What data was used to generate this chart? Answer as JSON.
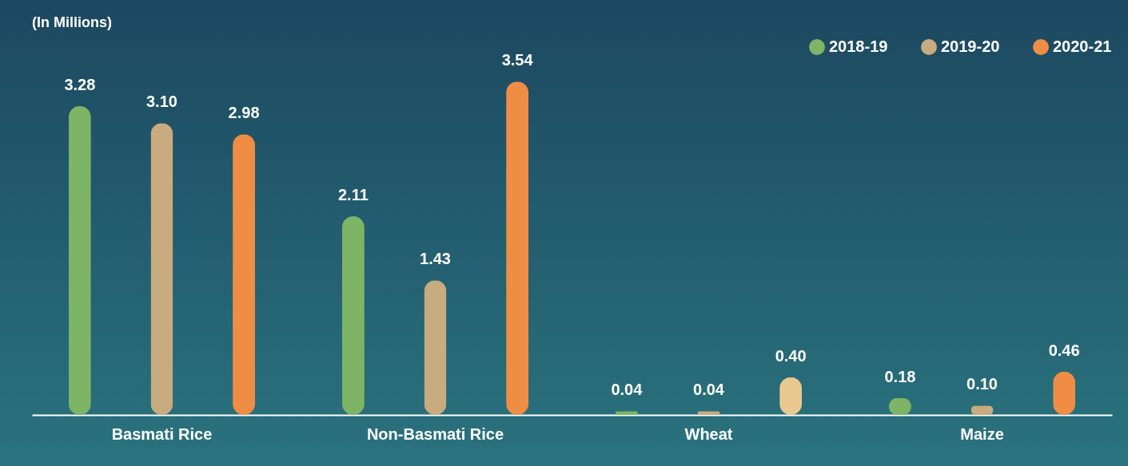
{
  "chart_data": {
    "type": "bar",
    "annotations": [
      "(In Millions)"
    ],
    "categories": [
      "Basmati Rice",
      "Non-Basmati Rice",
      "Wheat",
      "Maize"
    ],
    "series": [
      {
        "name": "2018-19",
        "color": "#7db465",
        "values": [
          3.28,
          2.11,
          0.04,
          0.18
        ],
        "value_labels": [
          "3.28",
          "2.11",
          "0.04",
          "0.18"
        ]
      },
      {
        "name": "2019-20",
        "color": "#c8ab7e",
        "values": [
          3.1,
          1.43,
          0.04,
          0.1
        ],
        "value_labels": [
          "3.10",
          "1.43",
          "0.04",
          "0.10"
        ]
      },
      {
        "name": "2020-21",
        "color": "#ef8d45",
        "colors": [
          "#ef8d45",
          "#ef8d45",
          "#e9c98f",
          "#ef8d45"
        ],
        "values": [
          2.98,
          3.54,
          0.4,
          0.46
        ],
        "value_labels": [
          "2.98",
          "3.54",
          "0.40",
          "0.46"
        ]
      }
    ],
    "legend": "top right",
    "grid": false
  }
}
